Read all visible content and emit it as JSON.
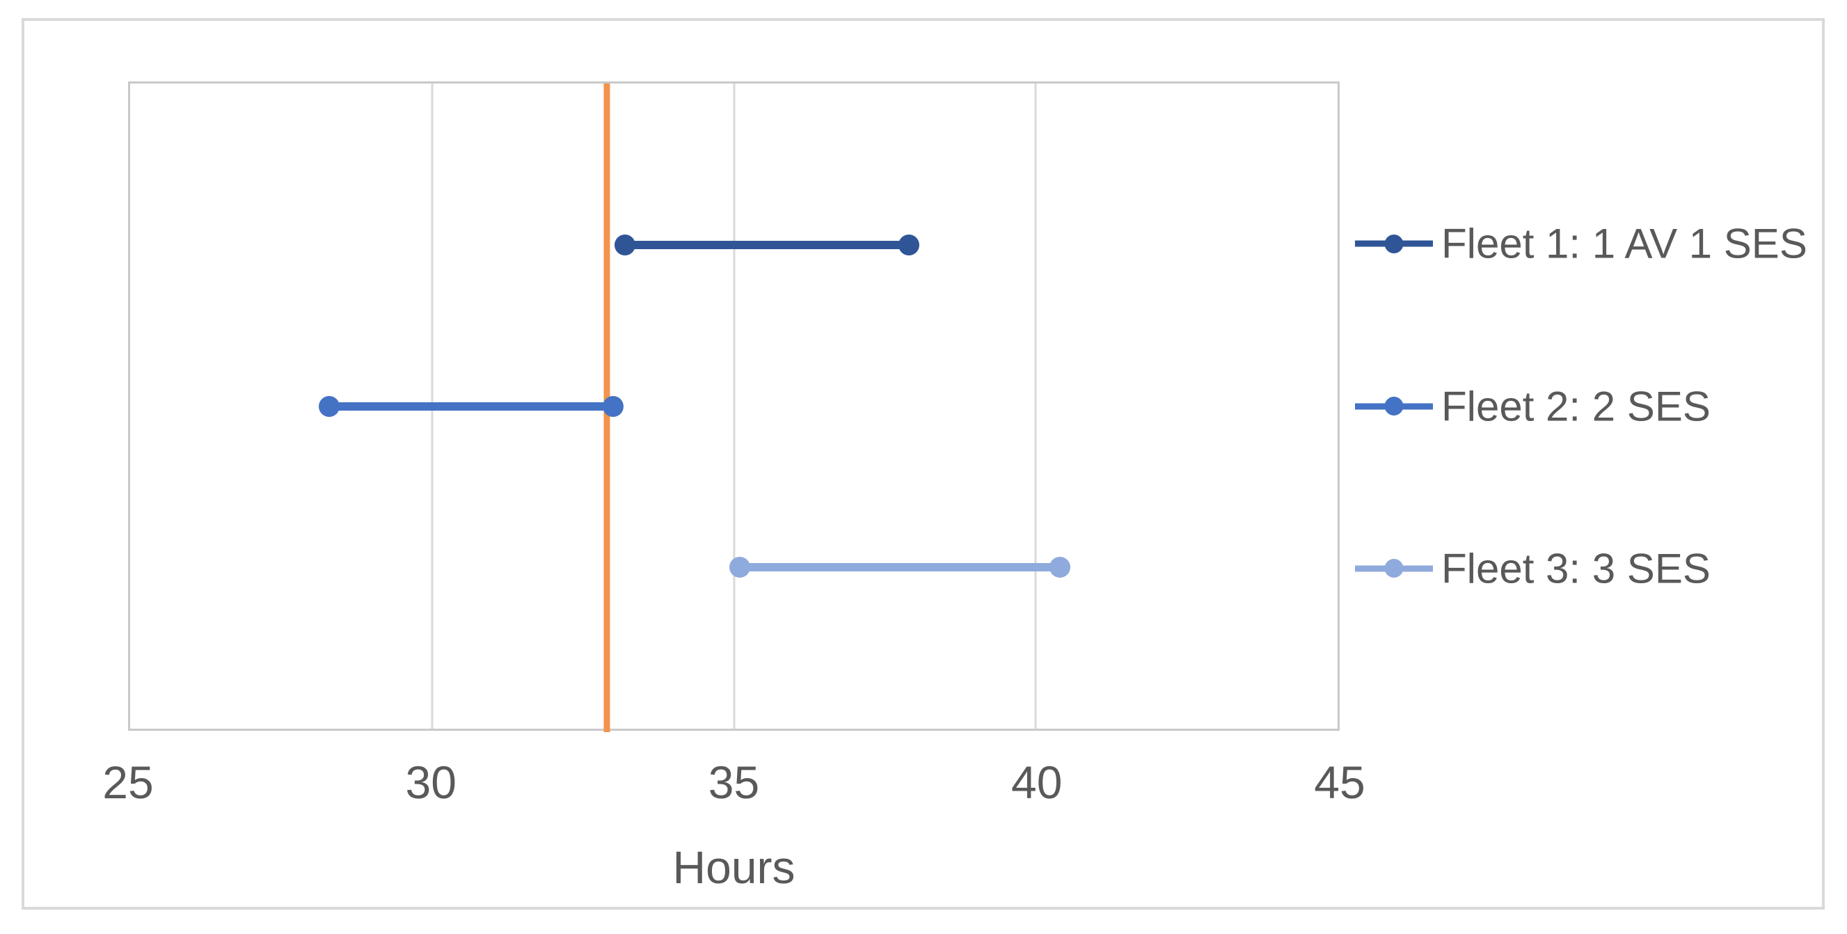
{
  "chart_data": {
    "type": "line",
    "subtype": "horizontal-range-segments-with-markers",
    "title": "",
    "xlabel": "Hours",
    "ylabel": "",
    "xlim": [
      25,
      45
    ],
    "xticks": [
      25,
      30,
      35,
      40,
      45
    ],
    "gridlines": [
      30,
      35,
      40
    ],
    "y_rows_total": 4,
    "legend_position": "right",
    "series": [
      {
        "name": "Fleet 1: 1 AV 1 SES",
        "color": "#2F5597",
        "y_row": 3,
        "x_start": 33.2,
        "x_end": 37.9
      },
      {
        "name": "Fleet 2: 2 SES",
        "color": "#4472C4",
        "y_row": 2,
        "x_start": 28.3,
        "x_end": 33.0
      },
      {
        "name": "Fleet 3: 3 SES",
        "color": "#8FAADC",
        "y_row": 1,
        "x_start": 35.1,
        "x_end": 40.4
      }
    ],
    "reference_line": {
      "orientation": "vertical",
      "x": 32.9,
      "color": "#F2944D"
    },
    "colors": {
      "gridline": "#D9D9D9",
      "plot_border": "#C9C9C9",
      "outer_border": "#D9D9D9",
      "axis_text": "#595959"
    }
  },
  "axis": {
    "x_tick_labels": [
      "25",
      "30",
      "35",
      "40",
      "45"
    ],
    "x_title": "Hours"
  },
  "legend": {
    "items": [
      {
        "label": "Fleet 1: 1 AV 1 SES",
        "color": "#2F5597"
      },
      {
        "label": "Fleet 2: 2 SES",
        "color": "#4472C4"
      },
      {
        "label": "Fleet 3: 3 SES",
        "color": "#8FAADC"
      }
    ]
  }
}
